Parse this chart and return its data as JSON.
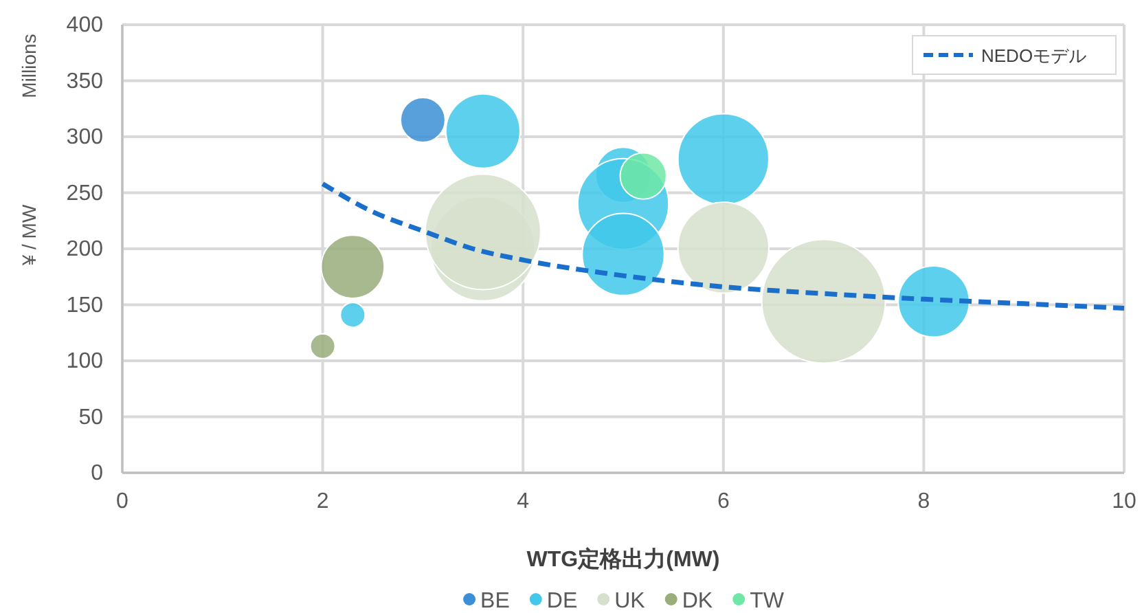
{
  "chart_data": {
    "type": "bubble",
    "xlabel": "WTG定格出力(MW)",
    "ylabel": "¥ / MW",
    "annotations": [
      "Millions"
    ],
    "xlim": [
      0,
      10
    ],
    "xticks": [
      0,
      2,
      4,
      6,
      8,
      10
    ],
    "ylim": [
      0,
      400
    ],
    "yticks": [
      0,
      50,
      100,
      150,
      200,
      250,
      300,
      350,
      400
    ],
    "grid": true,
    "legend": "bottom",
    "series": [
      {
        "name": "BE",
        "color": "#3a8fd6",
        "x": [
          3.0
        ],
        "values": [
          315
        ],
        "sizes": [
          0.13
        ]
      },
      {
        "name": "DE",
        "color": "#41c8ea",
        "x": [
          3.6,
          2.3,
          5.0,
          5.0,
          5.0,
          6.0,
          8.1
        ],
        "values": [
          305,
          141,
          266,
          240,
          195,
          280,
          153
        ],
        "sizes": [
          0.36,
          0.04,
          0.2,
          0.54,
          0.44,
          0.54,
          0.33
        ]
      },
      {
        "name": "UK",
        "color": "#d6e0cc",
        "x": [
          3.6,
          3.6,
          6.0,
          7.0
        ],
        "values": [
          200,
          215,
          201,
          153
        ],
        "sizes": [
          0.71,
          0.87,
          0.54,
          1
        ]
      },
      {
        "name": "DK",
        "color": "#9aad7b",
        "x": [
          2.3,
          2.0
        ],
        "values": [
          184,
          113
        ],
        "sizes": [
          0.26,
          0.04
        ]
      },
      {
        "name": "TW",
        "color": "#6ee8a6",
        "x": [
          5.2
        ],
        "values": [
          265
        ],
        "sizes": [
          0.14
        ]
      },
      {
        "name": "NEDOモデル",
        "type": "line",
        "color": "#1a6fcc",
        "line_style": "dashed",
        "x": [
          2,
          2.5,
          3,
          3.5,
          4,
          5,
          6,
          7,
          8,
          9,
          10
        ],
        "values": [
          258,
          233,
          216,
          200,
          190,
          176,
          166,
          160,
          155,
          151,
          147
        ]
      }
    ]
  }
}
